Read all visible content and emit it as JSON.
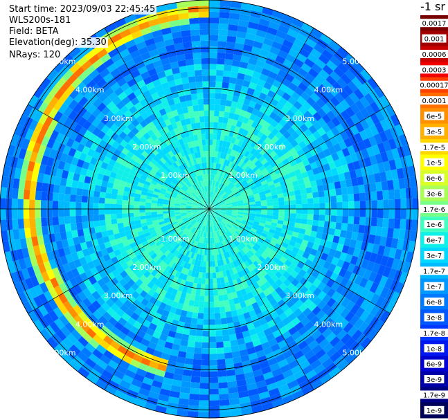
{
  "header": {
    "start_time": "Start time: 2023/09/03 22:45:45",
    "instrument": "WLS200s-181",
    "field": "Field: BETA",
    "elevation": "Elevation(deg): 35.30",
    "nrays": "NRays: 120"
  },
  "colorbar": {
    "unit_label": "-1 sr",
    "ticks": [
      "0.0017",
      "0.001",
      "0.0006",
      "0.0003",
      "0.00017",
      "0.0001",
      "6e-5",
      "3e-5",
      "1.7e-5",
      "1e-5",
      "6e-6",
      "3e-6",
      "1.7e-6",
      "1e-6",
      "6e-7",
      "3e-7",
      "1.7e-7",
      "1e-7",
      "6e-8",
      "3e-8",
      "1.7e-8",
      "1e-8",
      "6e-9",
      "3e-9",
      "1.7e-9",
      "1e-9"
    ],
    "colors": [
      "#7a0000",
      "#a00000",
      "#c80000",
      "#f00000",
      "#ff4000",
      "#ff7000",
      "#ff9000",
      "#ffb000",
      "#ffd800",
      "#ffff00",
      "#d8ff28",
      "#a8ff58",
      "#78ff88",
      "#40ffc0",
      "#10f0e8",
      "#00d8ff",
      "#00b8ff",
      "#0098ff",
      "#0078ff",
      "#0058ff",
      "#0038ff",
      "#0018f0",
      "#0000d0",
      "#0000a8",
      "#000080",
      "#000058"
    ]
  },
  "chart_data": {
    "type": "heatmap",
    "projection": "polar PPI",
    "field": "BETA",
    "units": "-1 sr",
    "nrays": 120,
    "range_rings_km": [
      1,
      2,
      3,
      4,
      5
    ],
    "ring_labels": [
      "1.00km",
      "2.00km",
      "3.00km",
      "4.00km",
      "5.00km"
    ],
    "max_range_km": 5.2,
    "radial_lines_deg": [
      0,
      30,
      60,
      90,
      120,
      150,
      180,
      210,
      240,
      270,
      300,
      330
    ],
    "typical_background": "1e-6",
    "enhanced_arc": {
      "range_km": [
        4.0,
        4.5
      ],
      "azimuth_deg": [
        195,
        360
      ],
      "value_range": [
        "1e-5",
        "1e-4"
      ]
    }
  }
}
